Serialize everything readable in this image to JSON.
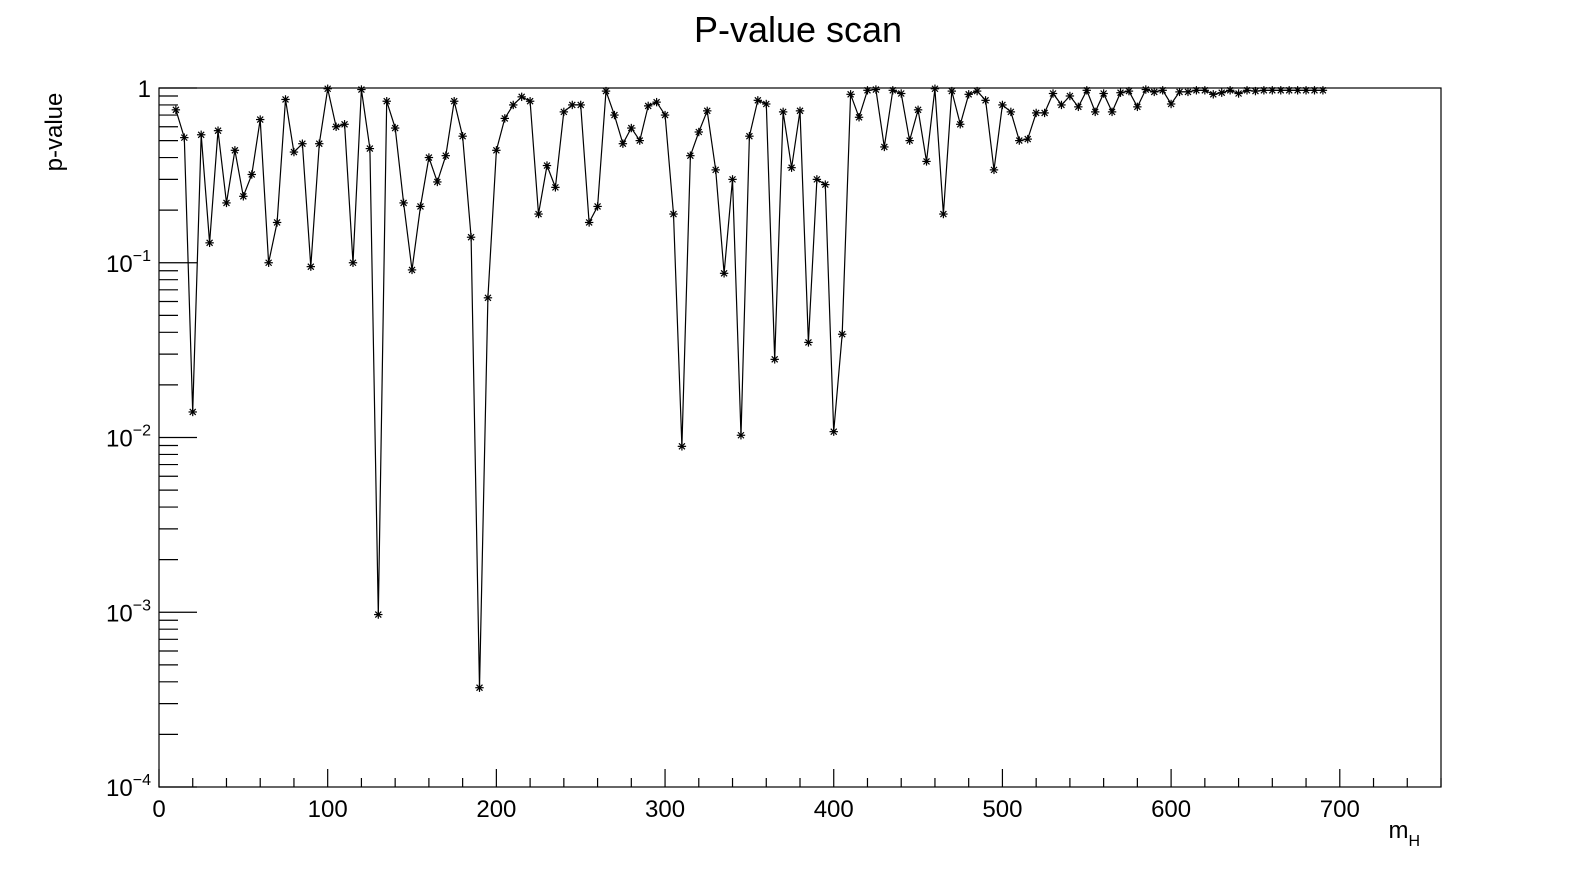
{
  "chart_data": {
    "type": "line",
    "title": "P-value scan",
    "xlabel": "m",
    "xlabel_sub": "H",
    "ylabel": "p-value",
    "yscale": "log",
    "xlim": [
      0,
      760
    ],
    "ylim": [
      0.0001,
      1
    ],
    "grid": false,
    "legend": "none",
    "line_color": "#000000",
    "marker": "asterisk",
    "x_ticks": [
      "0",
      "100",
      "200",
      "300",
      "400",
      "500",
      "600",
      "700"
    ],
    "y_ticks": [
      {
        "base": "1",
        "exp": ""
      },
      {
        "base": "10",
        "exp": "−1"
      },
      {
        "base": "10",
        "exp": "−2"
      },
      {
        "base": "10",
        "exp": "−3"
      },
      {
        "base": "10",
        "exp": "−4"
      }
    ],
    "x": [
      10,
      15,
      20,
      25,
      30,
      35,
      40,
      45,
      50,
      55,
      60,
      65,
      70,
      75,
      80,
      85,
      90,
      95,
      100,
      105,
      110,
      115,
      120,
      125,
      130,
      135,
      140,
      145,
      150,
      155,
      160,
      165,
      170,
      175,
      180,
      185,
      190,
      195,
      200,
      205,
      210,
      215,
      220,
      225,
      230,
      235,
      240,
      245,
      250,
      255,
      260,
      265,
      270,
      275,
      280,
      285,
      290,
      295,
      300,
      305,
      310,
      315,
      320,
      325,
      330,
      335,
      340,
      345,
      350,
      355,
      360,
      365,
      370,
      375,
      380,
      385,
      390,
      395,
      400,
      405,
      410,
      415,
      420,
      425,
      430,
      435,
      440,
      445,
      450,
      455,
      460,
      465,
      470,
      475,
      480,
      485,
      490,
      495,
      500,
      505,
      510,
      515,
      520,
      525,
      530,
      535,
      540,
      545,
      550,
      555,
      560,
      565,
      570,
      575,
      580,
      585,
      590,
      595,
      600,
      605,
      610,
      615,
      620,
      625,
      630,
      635,
      640,
      645,
      650,
      655,
      660,
      665,
      670,
      675,
      680,
      685,
      690
    ],
    "y": [
      0.75,
      0.52,
      0.014,
      0.54,
      0.13,
      0.57,
      0.22,
      0.44,
      0.24,
      0.32,
      0.66,
      0.1,
      0.17,
      0.86,
      0.43,
      0.48,
      0.095,
      0.48,
      0.99,
      0.6,
      0.62,
      0.1,
      0.98,
      0.45,
      0.00097,
      0.84,
      0.59,
      0.22,
      0.091,
      0.21,
      0.4,
      0.29,
      0.41,
      0.84,
      0.53,
      0.14,
      0.00037,
      0.063,
      0.44,
      0.67,
      0.8,
      0.89,
      0.84,
      0.19,
      0.36,
      0.27,
      0.73,
      0.8,
      0.8,
      0.17,
      0.21,
      0.96,
      0.7,
      0.48,
      0.59,
      0.5,
      0.79,
      0.83,
      0.7,
      0.19,
      0.0089,
      0.41,
      0.56,
      0.74,
      0.34,
      0.087,
      0.3,
      0.0103,
      0.53,
      0.85,
      0.81,
      0.028,
      0.73,
      0.35,
      0.74,
      0.035,
      0.3,
      0.28,
      0.0108,
      0.039,
      0.92,
      0.68,
      0.97,
      0.98,
      0.46,
      0.97,
      0.93,
      0.5,
      0.75,
      0.38,
      0.99,
      0.19,
      0.96,
      0.62,
      0.92,
      0.96,
      0.85,
      0.34,
      0.8,
      0.73,
      0.5,
      0.51,
      0.72,
      0.72,
      0.93,
      0.8,
      0.9,
      0.78,
      0.97,
      0.73,
      0.93,
      0.73,
      0.94,
      0.96,
      0.78,
      0.98,
      0.95,
      0.97,
      0.81,
      0.95,
      0.95,
      0.97,
      0.97,
      0.92,
      0.94,
      0.97,
      0.93,
      0.97,
      0.96,
      0.97,
      0.97,
      0.97,
      0.97,
      0.97,
      0.97,
      0.97,
      0.97
    ]
  }
}
